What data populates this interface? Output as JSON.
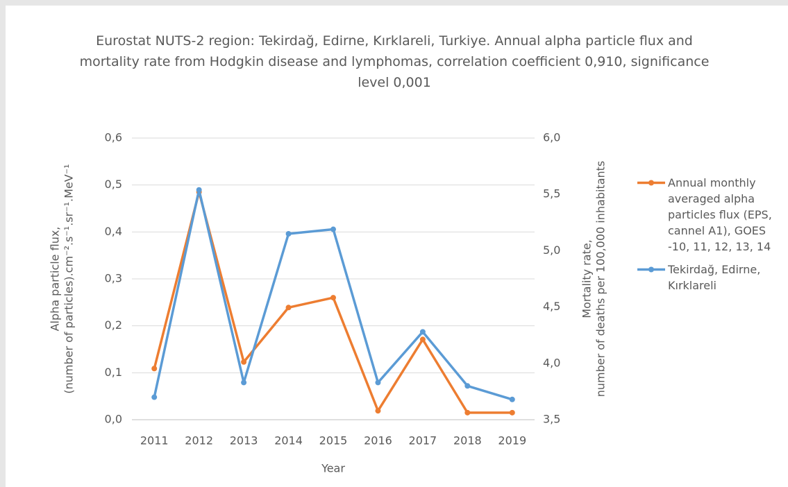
{
  "chart_data": {
    "type": "line",
    "title": "Eurostat NUTS-2 region: Tekirdağ, Edirne, Kırklareli, Turkiye. Annual alpha particle flux and mortality rate from Hodgkin disease and lymphomas, correlation coefficient 0,910, significance level 0,001",
    "xlabel": "Year",
    "ylabel": [
      "Alpha particle flux,",
      "(number of particles).cm⁻².s⁻¹.sr⁻¹.MeV⁻¹"
    ],
    "y2label": [
      "Mortality rate,",
      "number of deaths per 100,000 inhabitants"
    ],
    "categories": [
      "2011",
      "2012",
      "2013",
      "2014",
      "2015",
      "2016",
      "2017",
      "2018",
      "2019"
    ],
    "series": [
      {
        "name": "Annual monthly averaged alpha particles flux (EPS, cannel A1), GOES -10, 11, 12, 13, 14",
        "color": "#ed7d31",
        "values": [
          0.109,
          0.485,
          0.123,
          0.239,
          0.26,
          0.019,
          0.171,
          0.015,
          0.015
        ]
      },
      {
        "name": "Tekirdağ, Edirne, Kırklareli",
        "color": "#5b9bd5",
        "axis": "y2",
        "values": [
          3.7,
          5.54,
          3.83,
          5.15,
          5.19,
          3.83,
          4.28,
          3.8,
          3.68
        ]
      }
    ],
    "ylim": [
      0,
      0.6
    ],
    "yticks": [
      {
        "value": 0,
        "label": "0,0"
      },
      {
        "value": 0.1,
        "label": "0,1"
      },
      {
        "value": 0.2,
        "label": "0,2"
      },
      {
        "value": 0.3,
        "label": "0,3"
      },
      {
        "value": 0.4,
        "label": "0,4"
      },
      {
        "value": 0.5,
        "label": "0,5"
      },
      {
        "value": 0.6,
        "label": "0,6"
      }
    ],
    "y2lim": [
      3.5,
      6.0
    ],
    "y2ticks": [
      {
        "value": 3.5,
        "label": "3,5"
      },
      {
        "value": 4.0,
        "label": "4,0"
      },
      {
        "value": 4.5,
        "label": "4,5"
      },
      {
        "value": 5.0,
        "label": "5,0"
      },
      {
        "value": 5.5,
        "label": "5,5"
      },
      {
        "value": 6.0,
        "label": "6,0"
      }
    ],
    "grid": true,
    "legend": "right"
  }
}
